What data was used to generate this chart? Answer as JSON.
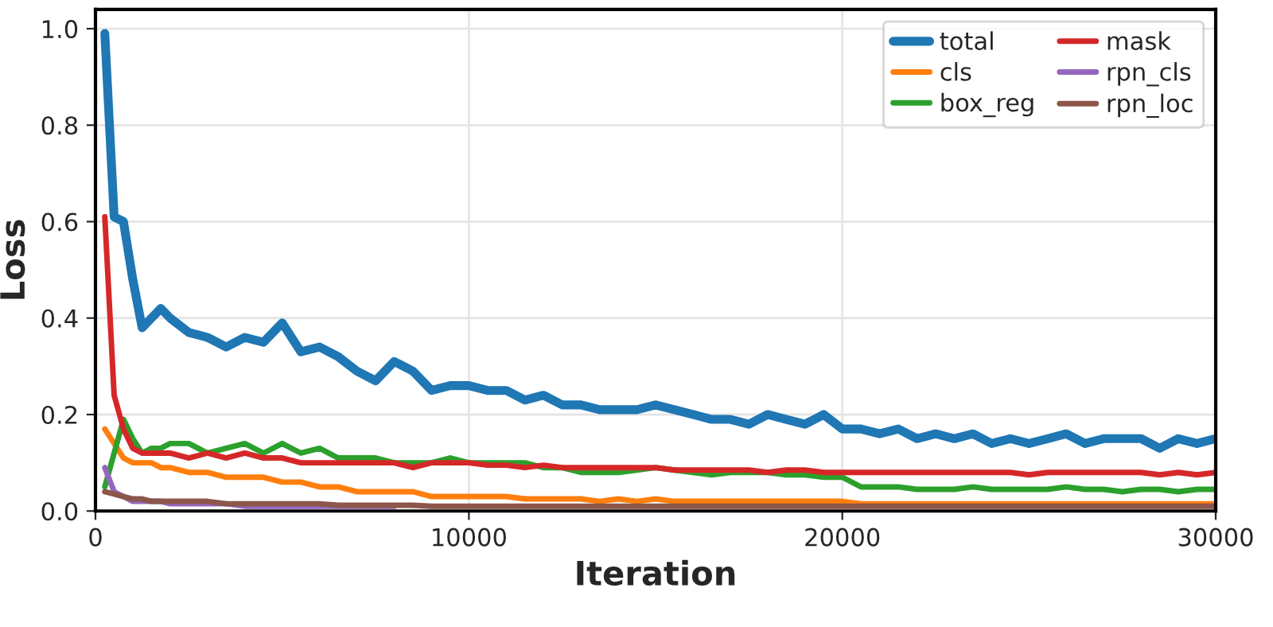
{
  "chart_data": {
    "type": "line",
    "xlabel": "Iteration",
    "ylabel": "Loss",
    "x": [
      250,
      500,
      750,
      1000,
      1250,
      1500,
      1750,
      2000,
      2500,
      3000,
      3500,
      4000,
      4500,
      5000,
      5500,
      6000,
      6500,
      7000,
      7500,
      8000,
      8500,
      9000,
      9500,
      10000,
      10500,
      11000,
      11500,
      12000,
      12500,
      13000,
      13500,
      14000,
      14500,
      15000,
      15500,
      16000,
      16500,
      17000,
      17500,
      18000,
      18500,
      19000,
      19500,
      20000,
      20500,
      21000,
      21500,
      22000,
      22500,
      23000,
      23500,
      24000,
      24500,
      25000,
      25500,
      26000,
      26500,
      27000,
      27500,
      28000,
      28500,
      29000,
      29500,
      30000
    ],
    "series": [
      {
        "name": "total",
        "color": "#1f77b4",
        "values": [
          0.99,
          0.61,
          0.6,
          0.48,
          0.38,
          0.4,
          0.42,
          0.4,
          0.37,
          0.36,
          0.34,
          0.36,
          0.35,
          0.39,
          0.33,
          0.34,
          0.32,
          0.29,
          0.27,
          0.31,
          0.29,
          0.25,
          0.26,
          0.26,
          0.25,
          0.25,
          0.23,
          0.24,
          0.22,
          0.22,
          0.21,
          0.21,
          0.21,
          0.22,
          0.21,
          0.2,
          0.19,
          0.19,
          0.18,
          0.2,
          0.19,
          0.18,
          0.2,
          0.17,
          0.17,
          0.16,
          0.17,
          0.15,
          0.16,
          0.15,
          0.16,
          0.14,
          0.15,
          0.14,
          0.15,
          0.16,
          0.14,
          0.15,
          0.15,
          0.15,
          0.13,
          0.15,
          0.14,
          0.15
        ]
      },
      {
        "name": "cls",
        "color": "#ff7f0e",
        "values": [
          0.17,
          0.14,
          0.11,
          0.1,
          0.1,
          0.1,
          0.09,
          0.09,
          0.08,
          0.08,
          0.07,
          0.07,
          0.07,
          0.06,
          0.06,
          0.05,
          0.05,
          0.04,
          0.04,
          0.04,
          0.04,
          0.03,
          0.03,
          0.03,
          0.03,
          0.03,
          0.025,
          0.025,
          0.025,
          0.025,
          0.02,
          0.025,
          0.02,
          0.025,
          0.02,
          0.02,
          0.02,
          0.02,
          0.02,
          0.02,
          0.02,
          0.02,
          0.02,
          0.02,
          0.015,
          0.015,
          0.015,
          0.015,
          0.015,
          0.015,
          0.015,
          0.015,
          0.015,
          0.015,
          0.015,
          0.015,
          0.015,
          0.015,
          0.015,
          0.015,
          0.015,
          0.015,
          0.015,
          0.015
        ]
      },
      {
        "name": "box_reg",
        "color": "#2ca02c",
        "values": [
          0.05,
          0.12,
          0.19,
          0.15,
          0.12,
          0.13,
          0.13,
          0.14,
          0.14,
          0.12,
          0.13,
          0.14,
          0.12,
          0.14,
          0.12,
          0.13,
          0.11,
          0.11,
          0.11,
          0.1,
          0.1,
          0.1,
          0.11,
          0.1,
          0.1,
          0.1,
          0.1,
          0.09,
          0.09,
          0.08,
          0.08,
          0.08,
          0.085,
          0.09,
          0.085,
          0.08,
          0.075,
          0.08,
          0.08,
          0.08,
          0.075,
          0.075,
          0.07,
          0.07,
          0.05,
          0.05,
          0.05,
          0.045,
          0.045,
          0.045,
          0.05,
          0.045,
          0.045,
          0.045,
          0.045,
          0.05,
          0.045,
          0.045,
          0.04,
          0.045,
          0.045,
          0.04,
          0.045,
          0.045
        ]
      },
      {
        "name": "mask",
        "color": "#d62728",
        "values": [
          0.61,
          0.24,
          0.17,
          0.13,
          0.12,
          0.12,
          0.12,
          0.12,
          0.11,
          0.12,
          0.11,
          0.12,
          0.11,
          0.11,
          0.1,
          0.1,
          0.1,
          0.1,
          0.1,
          0.1,
          0.09,
          0.1,
          0.1,
          0.1,
          0.095,
          0.095,
          0.09,
          0.095,
          0.09,
          0.09,
          0.09,
          0.09,
          0.09,
          0.09,
          0.085,
          0.085,
          0.085,
          0.085,
          0.085,
          0.08,
          0.085,
          0.085,
          0.08,
          0.08,
          0.08,
          0.08,
          0.08,
          0.08,
          0.08,
          0.08,
          0.08,
          0.08,
          0.08,
          0.075,
          0.08,
          0.08,
          0.08,
          0.08,
          0.08,
          0.08,
          0.075,
          0.08,
          0.075,
          0.08
        ]
      },
      {
        "name": "rpn_cls",
        "color": "#9467bd",
        "values": [
          0.09,
          0.04,
          0.03,
          0.02,
          0.02,
          0.02,
          0.02,
          0.015,
          0.015,
          0.015,
          0.015,
          0.01,
          0.01,
          0.01,
          0.01,
          0.01,
          0.01,
          0.01,
          0.01,
          0.01,
          null,
          null,
          null,
          null,
          null,
          null,
          null,
          null,
          null,
          null,
          null,
          null,
          null,
          null,
          null,
          null,
          null,
          null,
          null,
          null,
          null,
          null,
          null,
          null,
          null,
          null,
          null,
          null,
          null,
          null,
          null,
          null,
          null,
          null,
          null,
          null,
          null,
          null,
          null,
          null,
          null,
          null,
          null,
          null
        ]
      },
      {
        "name": "rpn_loc",
        "color": "#8c564b",
        "values": [
          0.04,
          0.035,
          0.03,
          0.025,
          0.025,
          0.02,
          0.02,
          0.02,
          0.02,
          0.02,
          0.015,
          0.015,
          0.015,
          0.015,
          0.015,
          0.015,
          0.012,
          0.012,
          0.012,
          0.012,
          0.012,
          0.01,
          0.01,
          0.01,
          0.01,
          0.01,
          0.01,
          0.01,
          0.01,
          0.01,
          0.01,
          0.01,
          0.01,
          0.01,
          0.01,
          0.01,
          0.01,
          0.01,
          0.01,
          0.01,
          0.01,
          0.01,
          0.01,
          0.01,
          0.01,
          0.01,
          0.01,
          0.01,
          0.01,
          0.01,
          0.01,
          0.01,
          0.01,
          0.01,
          0.01,
          0.01,
          0.01,
          0.01,
          0.01,
          0.01,
          0.01,
          0.01,
          0.01,
          0.01
        ]
      }
    ],
    "xlim": [
      0,
      30000
    ],
    "xticks": [
      0,
      10000,
      20000,
      30000
    ],
    "ylim": [
      0,
      1.04
    ],
    "yticks": [
      {
        "value": 0,
        "label": "0.0"
      },
      {
        "value": 0.2,
        "label": "0.2"
      },
      {
        "value": 0.4,
        "label": "0.4"
      },
      {
        "value": 0.6,
        "label": "0.6"
      },
      {
        "value": 0.8,
        "label": "0.8"
      },
      {
        "value": 1.0,
        "label": "1.0"
      }
    ],
    "grid": true,
    "legend": "top right"
  }
}
